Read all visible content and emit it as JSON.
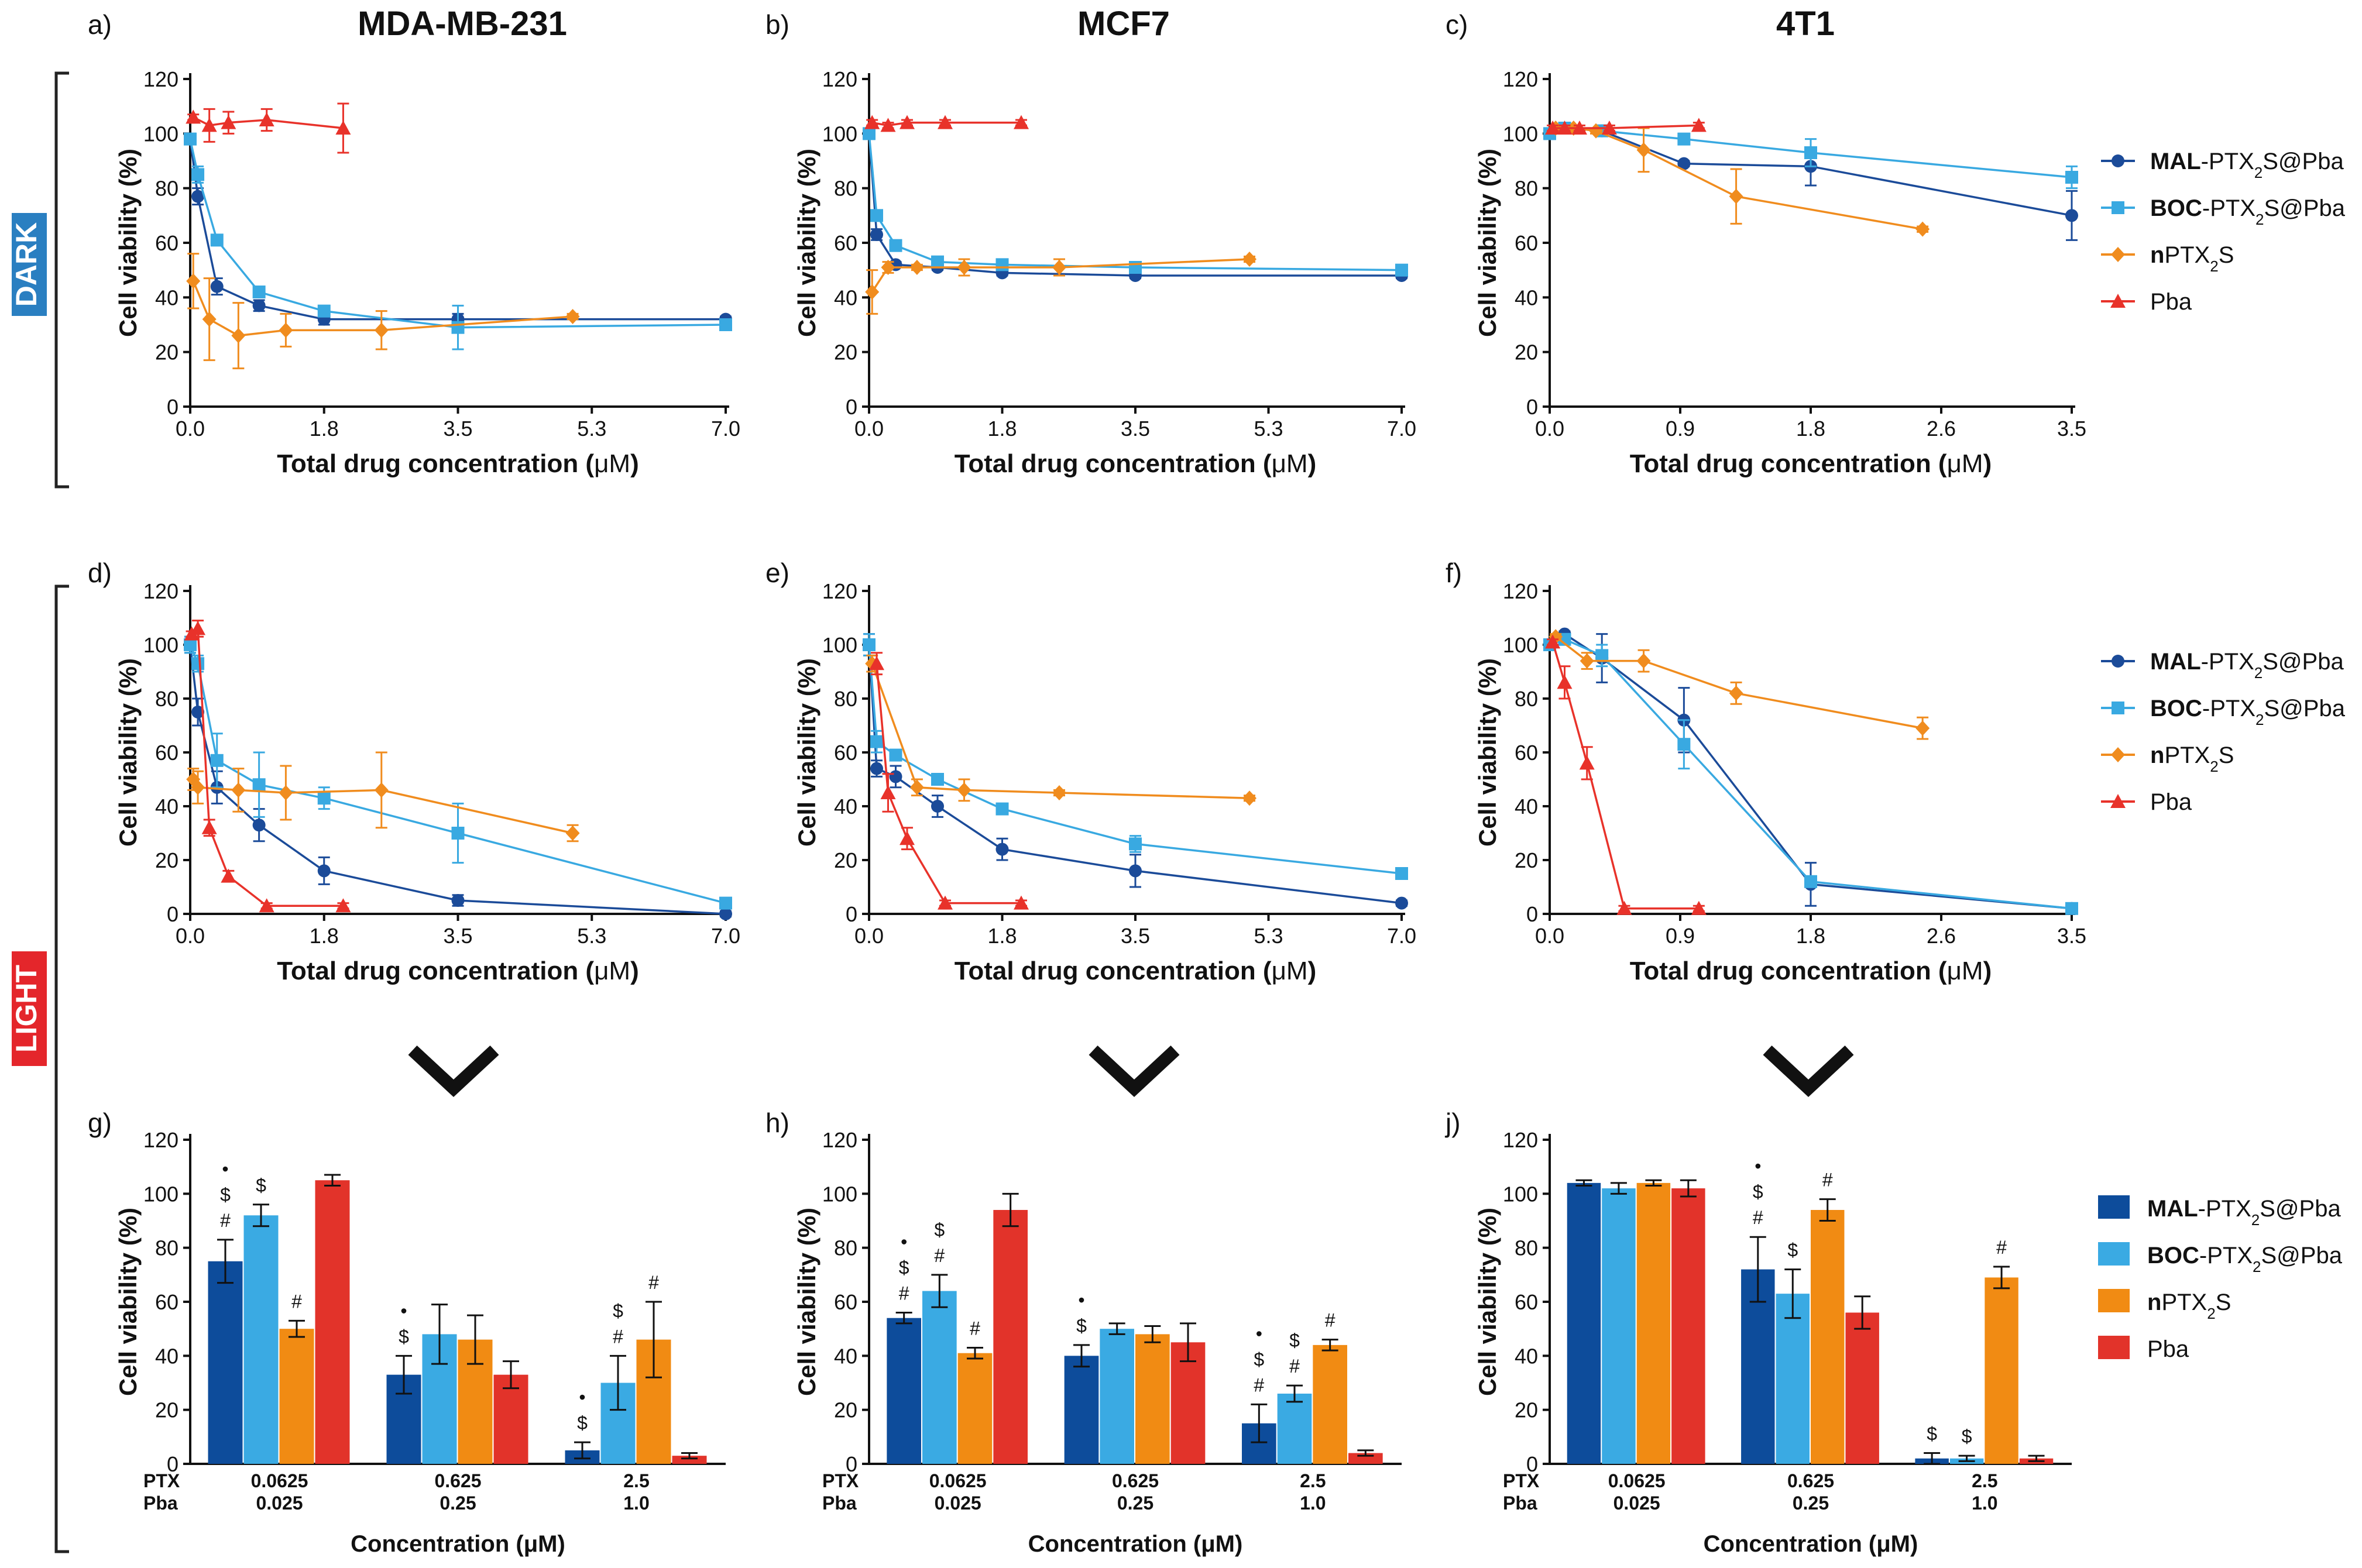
{
  "figure": {
    "columns": [
      {
        "letter_dark": "a)",
        "letter_light": "d)",
        "letter_bar": "g)",
        "title": "MDA-MB-231"
      },
      {
        "letter_dark": "b)",
        "letter_light": "e)",
        "letter_bar": "h)",
        "title": "MCF7"
      },
      {
        "letter_dark": "c)",
        "letter_light": "f)",
        "letter_bar": "j)",
        "title": "4T1"
      }
    ],
    "condition_dark": "DARK",
    "condition_light": "LIGHT",
    "dark_color": "#2a7fc1",
    "light_color": "#e4262b"
  },
  "legend": [
    {
      "bold": "MAL",
      "rest": "-PTX",
      "sub": "2",
      "tail": "S@Pba",
      "color": "#1b4b99",
      "marker": "circle"
    },
    {
      "bold": "BOC",
      "rest": "-PTX",
      "sub": "2",
      "tail": "S@Pba",
      "color": "#39a9e1",
      "marker": "square"
    },
    {
      "bold": "n",
      "rest": "PTX",
      "sub": "2",
      "tail": "S",
      "color": "#f08c1e",
      "marker": "diamond"
    },
    {
      "bold": "",
      "rest": "Pba",
      "sub": "",
      "tail": "",
      "color": "#e8322a",
      "marker": "triangle"
    }
  ],
  "bar_legend_colors": [
    "#0d4c9b",
    "#3aaae3",
    "#f18b13",
    "#e2332a"
  ],
  "common": {
    "ylabel": "Cell viability (%)",
    "xlabel_prefix": "Total drug concentration (",
    "xlabel_unit": "μM",
    "xlabel_suffix": ")",
    "bar_xlabel": "Concentration (μM)",
    "bar_row1_label": "PTX",
    "bar_row2_label": "Pba",
    "bar_ptx": [
      "0.0625",
      "0.625",
      "2.5"
    ],
    "bar_pba": [
      "0.025",
      "0.25",
      "1.0"
    ],
    "yticks": [
      "0",
      "20",
      "40",
      "60",
      "80",
      "100",
      "120"
    ],
    "bar_error_caps": true
  },
  "chart_data": [
    {
      "id": "a",
      "type": "line",
      "title": "MDA-MB-231 DARK",
      "xlim": [
        0,
        7
      ],
      "ylim": [
        0,
        120
      ],
      "xticks": [
        "0.0",
        "1.8",
        "3.5",
        "5.3",
        "7.0"
      ],
      "xtickvals": [
        0,
        1.75,
        3.5,
        5.25,
        7
      ],
      "series": [
        {
          "name": "MAL-PTX2S@Pba",
          "x": [
            0,
            0.1,
            0.35,
            0.9,
            1.75,
            3.5,
            7
          ],
          "y": [
            98,
            77,
            44,
            37,
            32,
            32,
            32
          ],
          "err": [
            2,
            3,
            3,
            2,
            2,
            2,
            1
          ]
        },
        {
          "name": "BOC-PTX2S@Pba",
          "x": [
            0,
            0.1,
            0.35,
            0.9,
            1.75,
            3.5,
            7
          ],
          "y": [
            98,
            85,
            61,
            42,
            35,
            29,
            30
          ],
          "err": [
            2,
            3,
            2,
            2,
            2,
            8,
            1
          ]
        },
        {
          "name": "nPTX2S",
          "x": [
            0.04,
            0.25,
            0.63,
            1.25,
            2.5,
            5
          ],
          "y": [
            46,
            32,
            26,
            28,
            28,
            33
          ],
          "err": [
            10,
            15,
            12,
            6,
            7,
            1
          ]
        },
        {
          "name": "Pba",
          "x": [
            0.04,
            0.25,
            0.5,
            1,
            2
          ],
          "y": [
            106,
            103,
            104,
            105,
            102
          ],
          "err": [
            1,
            6,
            4,
            4,
            9
          ]
        }
      ]
    },
    {
      "id": "b",
      "type": "line",
      "title": "MCF7 DARK",
      "xlim": [
        0,
        7
      ],
      "ylim": [
        0,
        120
      ],
      "xticks": [
        "0.0",
        "1.8",
        "3.5",
        "5.3",
        "7.0"
      ],
      "xtickvals": [
        0,
        1.75,
        3.5,
        5.25,
        7
      ],
      "series": [
        {
          "name": "MAL-PTX2S@Pba",
          "x": [
            0,
            0.1,
            0.35,
            0.9,
            1.75,
            3.5,
            7
          ],
          "y": [
            100,
            63,
            52,
            51,
            49,
            48,
            48
          ],
          "err": [
            2,
            2,
            1,
            1,
            1,
            1,
            1
          ]
        },
        {
          "name": "BOC-PTX2S@Pba",
          "x": [
            0,
            0.1,
            0.35,
            0.9,
            1.75,
            3.5,
            7
          ],
          "y": [
            100,
            70,
            59,
            53,
            52,
            51,
            50
          ],
          "err": [
            2,
            2,
            1,
            1,
            1,
            1,
            1
          ]
        },
        {
          "name": "nPTX2S",
          "x": [
            0.04,
            0.25,
            0.63,
            1.25,
            2.5,
            5
          ],
          "y": [
            42,
            51,
            51,
            51,
            51,
            54
          ],
          "err": [
            8,
            2,
            1,
            3,
            3,
            1
          ]
        },
        {
          "name": "Pba",
          "x": [
            0.04,
            0.25,
            0.5,
            1,
            2
          ],
          "y": [
            104,
            103,
            104,
            104,
            104
          ],
          "err": [
            1,
            1,
            1,
            1,
            1
          ]
        }
      ]
    },
    {
      "id": "c",
      "type": "line",
      "title": "4T1 DARK",
      "xlim": [
        0,
        3.5
      ],
      "ylim": [
        0,
        120
      ],
      "xticks": [
        "0.0",
        "0.9",
        "1.8",
        "2.6",
        "3.5"
      ],
      "xtickvals": [
        0,
        0.875,
        1.75,
        2.625,
        3.5
      ],
      "series": [
        {
          "name": "MAL-PTX2S@Pba",
          "x": [
            0,
            0.1,
            0.35,
            0.9,
            1.75,
            3.5
          ],
          "y": [
            100,
            102,
            101,
            89,
            88,
            70
          ],
          "err": [
            2,
            1,
            2,
            1,
            7,
            9
          ]
        },
        {
          "name": "BOC-PTX2S@Pba",
          "x": [
            0,
            0.1,
            0.35,
            0.9,
            1.75,
            3.5
          ],
          "y": [
            100,
            102,
            101,
            98,
            93,
            84
          ],
          "err": [
            2,
            1,
            2,
            2,
            5,
            4
          ]
        },
        {
          "name": "nPTX2S",
          "x": [
            0.04,
            0.16,
            0.31,
            0.63,
            1.25,
            2.5
          ],
          "y": [
            102,
            102,
            101,
            94,
            77,
            65
          ],
          "err": [
            1,
            1,
            1,
            8,
            10,
            1
          ]
        },
        {
          "name": "Pba",
          "x": [
            0.02,
            0.1,
            0.2,
            0.4,
            1
          ],
          "y": [
            102,
            102,
            102,
            102,
            103
          ],
          "err": [
            1,
            1,
            1,
            1,
            1
          ]
        }
      ]
    },
    {
      "id": "d",
      "type": "line",
      "title": "MDA-MB-231 LIGHT",
      "xlim": [
        0,
        7
      ],
      "ylim": [
        0,
        120
      ],
      "xticks": [
        "0.0",
        "1.8",
        "3.5",
        "5.3",
        "7.0"
      ],
      "xtickvals": [
        0,
        1.75,
        3.5,
        5.25,
        7
      ],
      "series": [
        {
          "name": "MAL-PTX2S@Pba",
          "x": [
            0,
            0.1,
            0.35,
            0.9,
            1.75,
            3.5,
            7
          ],
          "y": [
            100,
            75,
            47,
            33,
            16,
            5,
            0
          ],
          "err": [
            3,
            5,
            6,
            6,
            5,
            2,
            1
          ]
        },
        {
          "name": "BOC-PTX2S@Pba",
          "x": [
            0,
            0.1,
            0.35,
            0.9,
            1.75,
            3.5,
            7
          ],
          "y": [
            100,
            93,
            57,
            48,
            43,
            30,
            4
          ],
          "err": [
            3,
            3,
            10,
            12,
            4,
            11,
            1
          ]
        },
        {
          "name": "nPTX2S",
          "x": [
            0.04,
            0.1,
            0.63,
            1.25,
            2.5,
            5
          ],
          "y": [
            50,
            47,
            46,
            45,
            46,
            30
          ],
          "err": [
            4,
            6,
            8,
            10,
            14,
            3
          ]
        },
        {
          "name": "Pba",
          "x": [
            0.02,
            0.1,
            0.25,
            0.5,
            1,
            2
          ],
          "y": [
            104,
            106,
            32,
            14,
            3,
            3
          ],
          "err": [
            1,
            3,
            3,
            2,
            1,
            1
          ]
        }
      ]
    },
    {
      "id": "e",
      "type": "line",
      "title": "MCF7 LIGHT",
      "xlim": [
        0,
        7
      ],
      "ylim": [
        0,
        120
      ],
      "xticks": [
        "0.0",
        "1.8",
        "3.5",
        "5.3",
        "7.0"
      ],
      "xtickvals": [
        0,
        1.75,
        3.5,
        5.25,
        7
      ],
      "series": [
        {
          "name": "MAL-PTX2S@Pba",
          "x": [
            0,
            0.1,
            0.35,
            0.9,
            1.75,
            3.5,
            7
          ],
          "y": [
            100,
            54,
            51,
            40,
            24,
            16,
            4
          ],
          "err": [
            4,
            3,
            4,
            4,
            4,
            6,
            1
          ]
        },
        {
          "name": "BOC-PTX2S@Pba",
          "x": [
            0,
            0.1,
            0.35,
            0.9,
            1.75,
            3.5,
            7
          ],
          "y": [
            100,
            64,
            59,
            50,
            39,
            26,
            15
          ],
          "err": [
            4,
            4,
            2,
            2,
            2,
            3,
            1
          ]
        },
        {
          "name": "nPTX2S",
          "x": [
            0.04,
            0.63,
            1.25,
            2.5,
            5
          ],
          "y": [
            93,
            47,
            46,
            45,
            43
          ],
          "err": [
            3,
            3,
            4,
            1,
            1
          ]
        },
        {
          "name": "Pba",
          "x": [
            0.1,
            0.25,
            0.5,
            1,
            2
          ],
          "y": [
            93,
            45,
            28,
            4,
            4
          ],
          "err": [
            4,
            7,
            4,
            1,
            1
          ]
        }
      ]
    },
    {
      "id": "f",
      "type": "line",
      "title": "4T1 LIGHT",
      "xlim": [
        0,
        3.5
      ],
      "ylim": [
        0,
        120
      ],
      "xticks": [
        "0.0",
        "0.9",
        "1.8",
        "2.6",
        "3.5"
      ],
      "xtickvals": [
        0,
        0.875,
        1.75,
        2.625,
        3.5
      ],
      "series": [
        {
          "name": "MAL-PTX2S@Pba",
          "x": [
            0,
            0.1,
            0.35,
            0.9,
            1.75,
            3.5
          ],
          "y": [
            100,
            104,
            95,
            72,
            11,
            2
          ],
          "err": [
            2,
            1,
            9,
            12,
            8,
            1
          ]
        },
        {
          "name": "BOC-PTX2S@Pba",
          "x": [
            0,
            0.1,
            0.35,
            0.9,
            1.75,
            3.5
          ],
          "y": [
            100,
            102,
            96,
            63,
            12,
            2
          ],
          "err": [
            2,
            1,
            4,
            9,
            2,
            1
          ]
        },
        {
          "name": "nPTX2S",
          "x": [
            0.04,
            0.25,
            0.63,
            1.25,
            2.5
          ],
          "y": [
            103,
            94,
            94,
            82,
            69
          ],
          "err": [
            1,
            3,
            4,
            4,
            4
          ]
        },
        {
          "name": "Pba",
          "x": [
            0.02,
            0.1,
            0.25,
            0.5,
            1
          ],
          "y": [
            101,
            86,
            56,
            2,
            2
          ],
          "err": [
            1,
            6,
            6,
            1,
            1
          ]
        }
      ]
    },
    {
      "id": "g",
      "type": "bar",
      "title": "MDA-MB-231 LIGHT bars",
      "ylim": [
        0,
        120
      ],
      "groups": [
        {
          "values": [
            75,
            92,
            50,
            105
          ],
          "err": [
            8,
            4,
            3,
            2
          ],
          "annot": [
            [
              "#",
              "$",
              "•"
            ],
            [
              "$"
            ],
            [
              "#"
            ],
            []
          ]
        },
        {
          "values": [
            33,
            48,
            46,
            33
          ],
          "err": [
            7,
            11,
            9,
            5
          ],
          "annot": [
            [
              "$",
              "•"
            ],
            [],
            [],
            []
          ]
        },
        {
          "values": [
            5,
            30,
            46,
            3
          ],
          "err": [
            3,
            10,
            14,
            1
          ],
          "annot": [
            [
              "$",
              "•"
            ],
            [
              "#",
              "$"
            ],
            [
              "#"
            ],
            []
          ]
        }
      ]
    },
    {
      "id": "h",
      "type": "bar",
      "title": "MCF7 LIGHT bars",
      "ylim": [
        0,
        120
      ],
      "groups": [
        {
          "values": [
            54,
            64,
            41,
            94
          ],
          "err": [
            2,
            6,
            2,
            6
          ],
          "annot": [
            [
              "#",
              "$",
              "•"
            ],
            [
              "#",
              "$"
            ],
            [
              "#"
            ],
            []
          ]
        },
        {
          "values": [
            40,
            50,
            48,
            45
          ],
          "err": [
            4,
            2,
            3,
            7
          ],
          "annot": [
            [
              "$",
              "•"
            ],
            [],
            [],
            []
          ]
        },
        {
          "values": [
            15,
            26,
            44,
            4
          ],
          "err": [
            7,
            3,
            2,
            1
          ],
          "annot": [
            [
              "#",
              "$",
              "•"
            ],
            [
              "#",
              "$"
            ],
            [
              "#"
            ],
            []
          ]
        }
      ]
    },
    {
      "id": "j",
      "type": "bar",
      "title": "4T1 LIGHT bars",
      "ylim": [
        0,
        120
      ],
      "groups": [
        {
          "values": [
            104,
            102,
            104,
            102
          ],
          "err": [
            1,
            2,
            1,
            3
          ],
          "annot": [
            [],
            [],
            [],
            []
          ]
        },
        {
          "values": [
            72,
            63,
            94,
            56
          ],
          "err": [
            12,
            9,
            4,
            6
          ],
          "annot": [
            [
              "#",
              "$",
              "•"
            ],
            [
              "$"
            ],
            [
              "#"
            ],
            []
          ]
        },
        {
          "values": [
            2,
            2,
            69,
            2
          ],
          "err": [
            2,
            1,
            4,
            1
          ],
          "annot": [
            [
              "$"
            ],
            [
              "$"
            ],
            [
              "#"
            ],
            []
          ]
        }
      ]
    }
  ]
}
